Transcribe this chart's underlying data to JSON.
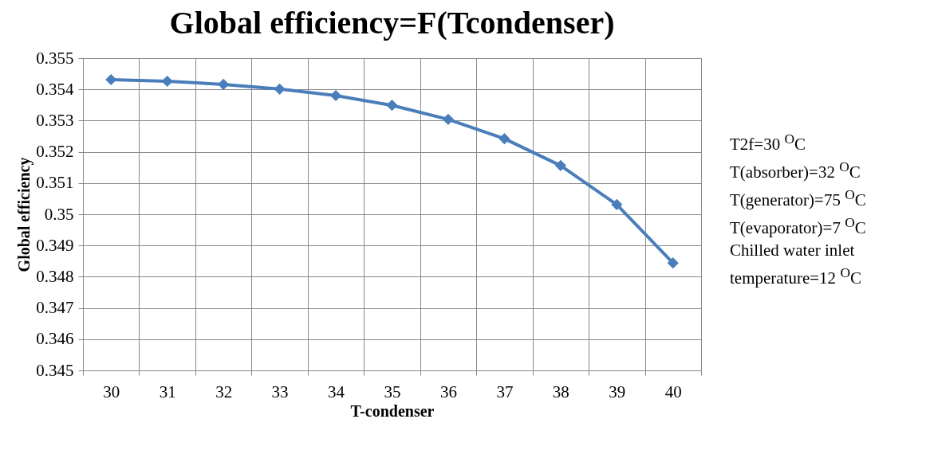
{
  "chart_data": {
    "type": "line",
    "title": "Global efficiency=F(Tcondenser)",
    "xlabel": "T-condenser",
    "ylabel": "Global efficiency",
    "categories": [
      "30",
      "31",
      "32",
      "33",
      "34",
      "35",
      "36",
      "37",
      "38",
      "39",
      "40"
    ],
    "series": [
      {
        "color": "#4a7ebb",
        "values": [
          0.35431,
          0.35426,
          0.35416,
          0.35401,
          0.3538,
          0.35349,
          0.35304,
          0.35242,
          0.35156,
          0.35031,
          0.34844
        ]
      }
    ],
    "ylim": [
      0.345,
      0.355
    ],
    "yticks": [
      0.345,
      0.346,
      0.347,
      0.348,
      0.349,
      0.35,
      0.351,
      0.352,
      0.353,
      0.354,
      0.355
    ],
    "grid": true,
    "marker": "diamond",
    "line_style": "solid",
    "annotations": [
      "T2f=30 $^{O}$C",
      "T(absorber)=32 $^{O}$C",
      "T(generator)=75 $^{O}$C",
      "T(evaporator)=7 $^{O}$C",
      "Chilled water inlet temperature=12 $^{O}$C"
    ]
  }
}
